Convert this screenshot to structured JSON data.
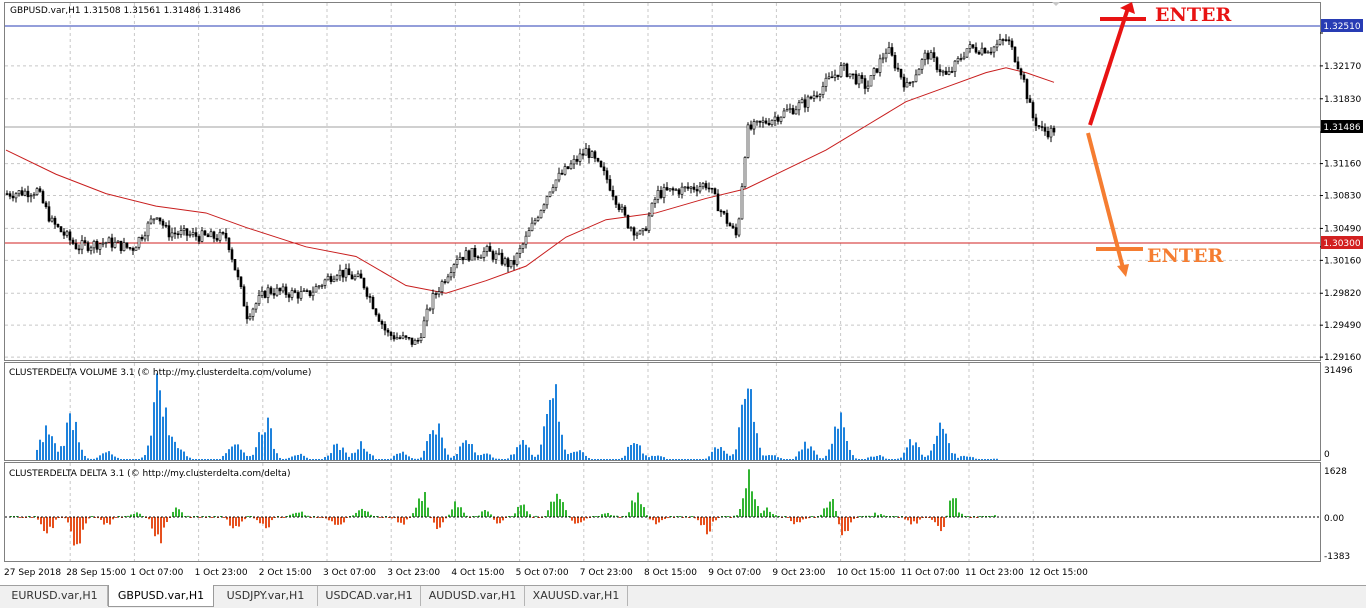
{
  "window": {
    "title": "GBPUSD.var,H1  1.31508 1.31561 1.31486 1.31486"
  },
  "price_axis": {
    "labels": [
      "1.32510",
      "1.32170",
      "1.31830",
      "1.31486",
      "1.31160",
      "1.30830",
      "1.30490",
      "1.30300",
      "1.30160",
      "1.29820",
      "1.29490",
      "1.29160"
    ],
    "current_price": "1.31486",
    "resistance_line": "1.32510",
    "support_line": "1.30300"
  },
  "time_axis": {
    "labels": [
      "27 Sep 2018",
      "28 Sep 15:00",
      "1 Oct 07:00",
      "1 Oct 23:00",
      "2 Oct 15:00",
      "3 Oct 07:00",
      "3 Oct 23:00",
      "4 Oct 15:00",
      "5 Oct 07:00",
      "7 Oct 23:00",
      "8 Oct 15:00",
      "9 Oct 07:00",
      "9 Oct 23:00",
      "10 Oct 15:00",
      "11 Oct 07:00",
      "11 Oct 23:00",
      "12 Oct 15:00"
    ]
  },
  "annotations": {
    "enter_up": "ENTER",
    "enter_down": "ENTER",
    "up_color": "#e81313",
    "down_color": "#f57d31"
  },
  "volume_panel": {
    "title": "CLUSTERDELTA VOLUME 3.1 (© http://my.clusterdelta.com/volume)",
    "max_label": "31496",
    "min_label": "0",
    "bar_color": "#1e82dc"
  },
  "delta_panel": {
    "title": "CLUSTERDELTA DELTA 3.1 (© http://my.clusterdelta.com/delta)",
    "top_label": "1628",
    "mid_label": "0.00",
    "bottom_label": "-1383",
    "pos_color": "#32b432",
    "neg_color": "#e6501e"
  },
  "tabs": [
    {
      "label": "EURUSD.var,H1",
      "active": false
    },
    {
      "label": "GBPUSD.var,H1",
      "active": true
    },
    {
      "label": "USDJPY.var,H1",
      "active": false
    },
    {
      "label": "USDCAD.var,H1",
      "active": false
    },
    {
      "label": "AUDUSD.var,H1",
      "active": false
    },
    {
      "label": "XAUUSD.var,H1",
      "active": false
    }
  ],
  "chart_data": {
    "type": "candlestick",
    "symbol": "GBPUSD.var",
    "timeframe": "H1",
    "ohlc_last": {
      "open": 1.31508,
      "high": 1.31561,
      "low": 1.31486,
      "close": 1.31486
    },
    "ylim": [
      1.2913,
      1.3282
    ],
    "close_path": [
      [
        0,
        1.3085
      ],
      [
        30,
        1.3088
      ],
      [
        45,
        1.3055
      ],
      [
        70,
        1.303
      ],
      [
        100,
        1.3035
      ],
      [
        125,
        1.3028
      ],
      [
        150,
        1.3065
      ],
      [
        160,
        1.3045
      ],
      [
        200,
        1.304
      ],
      [
        220,
        1.304
      ],
      [
        240,
        1.296
      ],
      [
        260,
        1.2985
      ],
      [
        300,
        1.298
      ],
      [
        330,
        1.3005
      ],
      [
        355,
        1.2995
      ],
      [
        380,
        1.294
      ],
      [
        410,
        1.293
      ],
      [
        425,
        1.2975
      ],
      [
        450,
        1.302
      ],
      [
        480,
        1.3025
      ],
      [
        505,
        1.301
      ],
      [
        520,
        1.304
      ],
      [
        545,
        1.3095
      ],
      [
        565,
        1.3115
      ],
      [
        580,
        1.313
      ],
      [
        600,
        1.31
      ],
      [
        620,
        1.3055
      ],
      [
        635,
        1.304
      ],
      [
        650,
        1.3085
      ],
      [
        680,
        1.309
      ],
      [
        700,
        1.3095
      ],
      [
        715,
        1.3065
      ],
      [
        730,
        1.304
      ],
      [
        740,
        1.315
      ],
      [
        770,
        1.3165
      ],
      [
        800,
        1.318
      ],
      [
        820,
        1.32
      ],
      [
        835,
        1.3215
      ],
      [
        860,
        1.3195
      ],
      [
        880,
        1.3235
      ],
      [
        900,
        1.3195
      ],
      [
        920,
        1.323
      ],
      [
        940,
        1.3205
      ],
      [
        960,
        1.3235
      ],
      [
        985,
        1.3235
      ],
      [
        1000,
        1.3245
      ],
      [
        1015,
        1.321
      ],
      [
        1025,
        1.3165
      ],
      [
        1035,
        1.315
      ],
      [
        1047,
        1.31486
      ]
    ],
    "moving_average": [
      [
        0,
        1.313
      ],
      [
        50,
        1.3105
      ],
      [
        100,
        1.3085
      ],
      [
        150,
        1.3072
      ],
      [
        200,
        1.3065
      ],
      [
        240,
        1.305
      ],
      [
        300,
        1.303
      ],
      [
        350,
        1.302
      ],
      [
        400,
        1.299
      ],
      [
        440,
        1.2982
      ],
      [
        480,
        1.2995
      ],
      [
        520,
        1.301
      ],
      [
        560,
        1.304
      ],
      [
        600,
        1.3058
      ],
      [
        650,
        1.3065
      ],
      [
        700,
        1.308
      ],
      [
        740,
        1.309
      ],
      [
        780,
        1.311
      ],
      [
        820,
        1.313
      ],
      [
        860,
        1.3155
      ],
      [
        900,
        1.318
      ],
      [
        940,
        1.3195
      ],
      [
        980,
        1.321
      ],
      [
        1000,
        1.3215
      ],
      [
        1020,
        1.321
      ],
      [
        1048,
        1.32
      ]
    ],
    "indicator_moving_average_color": "#c81e1e",
    "volume_profile": [
      [
        40,
        0.4
      ],
      [
        65,
        0.58
      ],
      [
        100,
        0.1
      ],
      [
        152,
        1.0
      ],
      [
        170,
        0.2
      ],
      [
        228,
        0.25
      ],
      [
        258,
        0.52
      ],
      [
        290,
        0.08
      ],
      [
        330,
        0.2
      ],
      [
        355,
        0.22
      ],
      [
        395,
        0.1
      ],
      [
        428,
        0.5
      ],
      [
        460,
        0.3
      ],
      [
        480,
        0.07
      ],
      [
        515,
        0.25
      ],
      [
        545,
        1.0
      ],
      [
        570,
        0.15
      ],
      [
        628,
        0.25
      ],
      [
        650,
        0.06
      ],
      [
        712,
        0.2
      ],
      [
        741,
        0.92
      ],
      [
        765,
        0.07
      ],
      [
        800,
        0.2
      ],
      [
        833,
        0.6
      ],
      [
        870,
        0.07
      ],
      [
        906,
        0.25
      ],
      [
        935,
        0.45
      ],
      [
        960,
        0.06
      ],
      [
        990,
        0.02
      ]
    ],
    "delta_profile": [
      [
        40,
        -0.5
      ],
      [
        70,
        -0.8
      ],
      [
        100,
        -0.2
      ],
      [
        130,
        0.1
      ],
      [
        152,
        -0.8
      ],
      [
        170,
        0.2
      ],
      [
        228,
        -0.3
      ],
      [
        258,
        -0.3
      ],
      [
        290,
        0.15
      ],
      [
        330,
        -0.3
      ],
      [
        355,
        0.2
      ],
      [
        395,
        -0.2
      ],
      [
        415,
        0.6
      ],
      [
        430,
        -0.3
      ],
      [
        450,
        0.4
      ],
      [
        480,
        0.2
      ],
      [
        490,
        -0.2
      ],
      [
        515,
        0.3
      ],
      [
        550,
        0.8
      ],
      [
        570,
        -0.2
      ],
      [
        600,
        0.1
      ],
      [
        630,
        0.6
      ],
      [
        650,
        -0.2
      ],
      [
        700,
        -0.4
      ],
      [
        742,
        1.0
      ],
      [
        760,
        0.2
      ],
      [
        790,
        -0.2
      ],
      [
        825,
        0.6
      ],
      [
        835,
        -0.7
      ],
      [
        870,
        0.1
      ],
      [
        906,
        -0.2
      ],
      [
        935,
        -0.4
      ],
      [
        945,
        0.5
      ],
      [
        990,
        0.05
      ]
    ]
  }
}
